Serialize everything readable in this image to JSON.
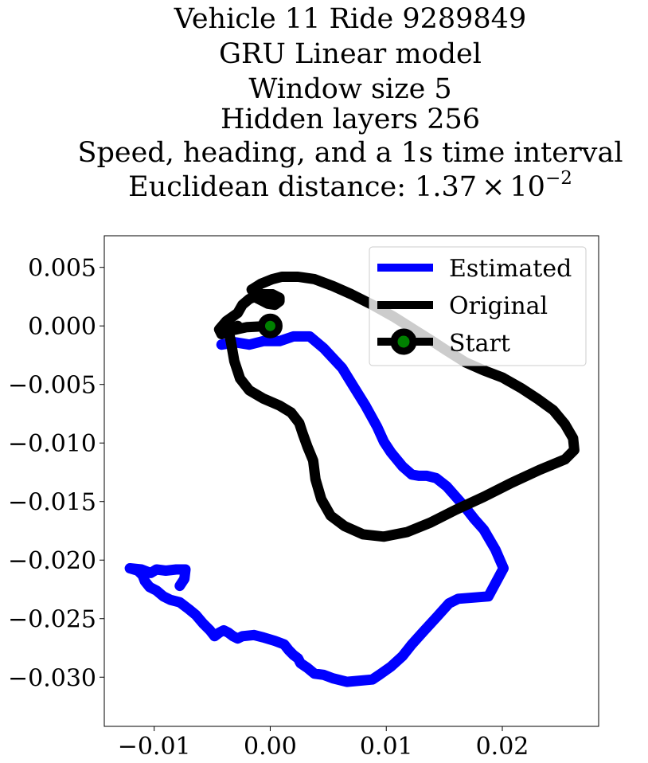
{
  "chart_data": {
    "type": "line",
    "title_lines": [
      "Vehicle 11 Ride 9289849",
      "GRU Linear model",
      "Window size 5",
      "Hidden layers 256",
      "Speed, heading, and a 1s time interval"
    ],
    "title_metric": {
      "prefix": "Euclidean distance: ",
      "mantissa": "1.37",
      "times": "×",
      "base": "10",
      "exponent": "−2"
    },
    "xlabel": "",
    "ylabel": "",
    "xlim": [
      -0.0143,
      0.0283
    ],
    "ylim": [
      -0.0342,
      0.0077
    ],
    "xticks": [
      {
        "value": -0.01,
        "label": "−0.01"
      },
      {
        "value": 0.0,
        "label": "0.00"
      },
      {
        "value": 0.01,
        "label": "0.01"
      },
      {
        "value": 0.02,
        "label": "0.02"
      }
    ],
    "yticks": [
      {
        "value": 0.005,
        "label": "0.005"
      },
      {
        "value": 0.0,
        "label": "0.000"
      },
      {
        "value": -0.005,
        "label": "−0.005"
      },
      {
        "value": -0.01,
        "label": "−0.010"
      },
      {
        "value": -0.015,
        "label": "−0.015"
      },
      {
        "value": -0.02,
        "label": "−0.020"
      },
      {
        "value": -0.025,
        "label": "−0.025"
      },
      {
        "value": -0.03,
        "label": "−0.030"
      }
    ],
    "grid": false,
    "legend": {
      "placement": "top-right",
      "entries": [
        {
          "key": "estimated",
          "label": "Estimated"
        },
        {
          "key": "original",
          "label": "Original"
        },
        {
          "key": "start",
          "label": "Start"
        }
      ]
    },
    "series": [
      {
        "key": "estimated",
        "name": "Estimated",
        "color": "#0000ff",
        "points": [
          [
            -0.0042,
            -0.0016
          ],
          [
            -0.003,
            -0.0014
          ],
          [
            -0.0018,
            -0.0016
          ],
          [
            -0.0006,
            -0.0013
          ],
          [
            0.0008,
            -0.0013
          ],
          [
            0.002,
            -0.0009
          ],
          [
            0.0034,
            -0.0009
          ],
          [
            0.0046,
            -0.0019
          ],
          [
            0.0062,
            -0.0036
          ],
          [
            0.0072,
            -0.0052
          ],
          [
            0.0082,
            -0.0068
          ],
          [
            0.0092,
            -0.0086
          ],
          [
            0.0098,
            -0.0099
          ],
          [
            0.0104,
            -0.0108
          ],
          [
            0.0114,
            -0.012
          ],
          [
            0.0122,
            -0.0127
          ],
          [
            0.0128,
            -0.0128
          ],
          [
            0.0135,
            -0.0128
          ],
          [
            0.0143,
            -0.013
          ],
          [
            0.0152,
            -0.0137
          ],
          [
            0.016,
            -0.0146
          ],
          [
            0.0168,
            -0.0155
          ],
          [
            0.0176,
            -0.0165
          ],
          [
            0.0184,
            -0.0174
          ],
          [
            0.0194,
            -0.0191
          ],
          [
            0.0201,
            -0.0207
          ],
          [
            0.0188,
            -0.0231
          ],
          [
            0.0162,
            -0.0233
          ],
          [
            0.0154,
            -0.0237
          ],
          [
            0.0144,
            -0.0248
          ],
          [
            0.0132,
            -0.0261
          ],
          [
            0.0122,
            -0.0272
          ],
          [
            0.0114,
            -0.0282
          ],
          [
            0.0104,
            -0.0291
          ],
          [
            0.0094,
            -0.0298
          ],
          [
            0.0088,
            -0.0302
          ],
          [
            0.0066,
            -0.0304
          ],
          [
            0.0054,
            -0.0301
          ],
          [
            0.0046,
            -0.0298
          ],
          [
            0.0038,
            -0.0297
          ],
          [
            0.0032,
            -0.0292
          ],
          [
            0.0026,
            -0.0288
          ],
          [
            0.0024,
            -0.0284
          ],
          [
            0.002,
            -0.0281
          ],
          [
            0.0016,
            -0.0277
          ],
          [
            0.0012,
            -0.0272
          ],
          [
            0.0004,
            -0.0269
          ],
          [
            -0.0006,
            -0.0266
          ],
          [
            -0.0014,
            -0.0264
          ],
          [
            -0.0024,
            -0.0265
          ],
          [
            -0.0028,
            -0.0267
          ],
          [
            -0.0032,
            -0.0265
          ],
          [
            -0.0036,
            -0.0262
          ],
          [
            -0.004,
            -0.026
          ],
          [
            -0.0044,
            -0.0262
          ],
          [
            -0.0048,
            -0.0265
          ],
          [
            -0.0052,
            -0.026
          ],
          [
            -0.0058,
            -0.0254
          ],
          [
            -0.0064,
            -0.0247
          ],
          [
            -0.007,
            -0.0242
          ],
          [
            -0.0078,
            -0.0236
          ],
          [
            -0.0086,
            -0.0234
          ],
          [
            -0.0092,
            -0.0231
          ],
          [
            -0.0098,
            -0.0226
          ],
          [
            -0.0104,
            -0.0223
          ],
          [
            -0.0108,
            -0.0218
          ],
          [
            -0.011,
            -0.0213
          ],
          [
            -0.0114,
            -0.0209
          ],
          [
            -0.0121,
            -0.0207
          ],
          [
            -0.0111,
            -0.0208
          ],
          [
            -0.0103,
            -0.0211
          ],
          [
            -0.0098,
            -0.0208
          ],
          [
            -0.009,
            -0.0209
          ],
          [
            -0.0081,
            -0.0208
          ],
          [
            -0.0073,
            -0.0208
          ],
          [
            -0.0074,
            -0.0216
          ],
          [
            -0.0078,
            -0.0222
          ]
        ]
      },
      {
        "key": "original",
        "name": "Original",
        "color": "#000000",
        "points": [
          [
            0.0,
            0.0
          ],
          [
            -0.002,
            -0.0001
          ],
          [
            -0.0034,
            -0.0004
          ],
          [
            -0.0042,
            -0.0007
          ],
          [
            -0.0044,
            -0.0003
          ],
          [
            -0.0038,
            0.0004
          ],
          [
            -0.0028,
            0.0011
          ],
          [
            -0.0024,
            0.0018
          ],
          [
            -0.0018,
            0.0023
          ],
          [
            -0.0008,
            0.0027
          ],
          [
            0.0002,
            0.0027
          ],
          [
            0.0008,
            0.0024
          ],
          [
            0.0008,
            0.0021
          ],
          [
            0.0004,
            0.0018
          ],
          [
            -0.0002,
            0.0019
          ],
          [
            -0.0012,
            0.0024
          ],
          [
            -0.0016,
            0.0031
          ],
          [
            -0.0008,
            0.0036
          ],
          [
            0.0002,
            0.004
          ],
          [
            0.001,
            0.0042
          ],
          [
            0.0024,
            0.0042
          ],
          [
            0.0038,
            0.004
          ],
          [
            0.0054,
            0.0034
          ],
          [
            0.007,
            0.0027
          ],
          [
            0.0088,
            0.0018
          ],
          [
            0.0106,
            0.0008
          ],
          [
            0.0122,
            -0.0002
          ],
          [
            0.0138,
            -0.0012
          ],
          [
            0.0152,
            -0.0021
          ],
          [
            0.0168,
            -0.0031
          ],
          [
            0.0184,
            -0.0038
          ],
          [
            0.02,
            -0.0044
          ],
          [
            0.0216,
            -0.0053
          ],
          [
            0.023,
            -0.0062
          ],
          [
            0.0244,
            -0.0072
          ],
          [
            0.0254,
            -0.0084
          ],
          [
            0.0261,
            -0.0096
          ],
          [
            0.0262,
            -0.0106
          ],
          [
            0.0254,
            -0.0114
          ],
          [
            0.0232,
            -0.0123
          ],
          [
            0.0208,
            -0.0134
          ],
          [
            0.0184,
            -0.0146
          ],
          [
            0.016,
            -0.0157
          ],
          [
            0.0138,
            -0.0168
          ],
          [
            0.0118,
            -0.0176
          ],
          [
            0.0098,
            -0.018
          ],
          [
            0.008,
            -0.0178
          ],
          [
            0.0064,
            -0.0171
          ],
          [
            0.0052,
            -0.0162
          ],
          [
            0.0044,
            -0.0148
          ],
          [
            0.0039,
            -0.0131
          ],
          [
            0.0037,
            -0.0115
          ],
          [
            0.0032,
            -0.0103
          ],
          [
            0.0028,
            -0.0092
          ],
          [
            0.0025,
            -0.0083
          ],
          [
            0.0018,
            -0.0074
          ],
          [
            0.0008,
            -0.0068
          ],
          [
            -0.0006,
            -0.0062
          ],
          [
            -0.0018,
            -0.0055
          ],
          [
            -0.0026,
            -0.0045
          ],
          [
            -0.0031,
            -0.003
          ],
          [
            -0.0034,
            -0.0013
          ],
          [
            -0.0036,
            -0.0004
          ],
          [
            -0.0028,
            0.0
          ]
        ]
      }
    ],
    "start_marker": {
      "key": "start",
      "name": "Start",
      "x": 0.0,
      "y": 0.0,
      "fill": "#008000",
      "stroke": "#000000"
    }
  }
}
